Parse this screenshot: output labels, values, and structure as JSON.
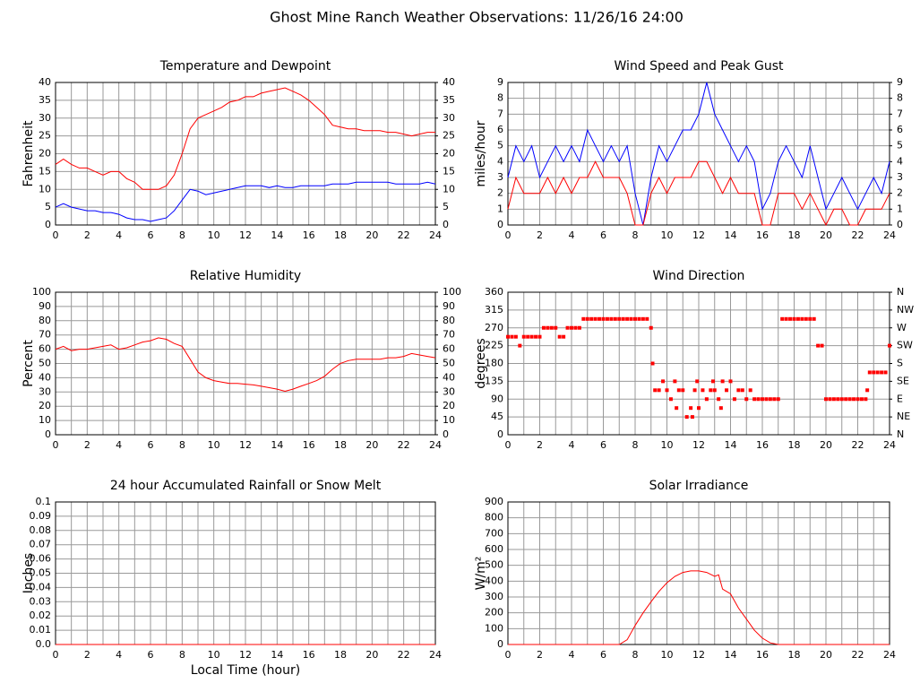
{
  "title": "Ghost Mine Ranch Weather Observations: 11/26/16 24:00",
  "chart_data": [
    {
      "type": "line",
      "title": "Temperature and Dewpoint",
      "ylabel": "Fahrenheit",
      "x": [
        0,
        0.5,
        1,
        1.5,
        2,
        2.5,
        3,
        3.5,
        4,
        4.5,
        5,
        5.5,
        6,
        6.5,
        7,
        7.5,
        8,
        8.5,
        9,
        9.5,
        10,
        10.5,
        11,
        11.5,
        12,
        12.5,
        13,
        13.5,
        14,
        14.5,
        15,
        15.5,
        16,
        16.5,
        17,
        17.5,
        18,
        18.5,
        19,
        19.5,
        20,
        20.5,
        21,
        21.5,
        22,
        22.5,
        23,
        23.5,
        24
      ],
      "series": [
        {
          "color": "#ff0000",
          "values": [
            17,
            18.5,
            17,
            16,
            16,
            15,
            14,
            15,
            15,
            13,
            12,
            10,
            10,
            10,
            11,
            14,
            20,
            27,
            30,
            31,
            32,
            33,
            34.5,
            35,
            36,
            36,
            37,
            37.5,
            38,
            38.5,
            37.5,
            36.5,
            35,
            33,
            31,
            28,
            27.5,
            27,
            27,
            26.5,
            26.5,
            26.5,
            26,
            26,
            25.5,
            25,
            25.5,
            26,
            26
          ]
        },
        {
          "color": "#0000ff",
          "values": [
            5,
            6,
            5,
            4.5,
            4,
            4,
            3.5,
            3.5,
            3,
            2,
            1.5,
            1.5,
            1,
            1.5,
            2,
            4,
            7,
            10,
            9.5,
            8.5,
            9,
            9.5,
            10,
            10.5,
            11,
            11,
            11,
            10.5,
            11,
            10.5,
            10.5,
            11,
            11,
            11,
            11,
            11.5,
            11.5,
            11.5,
            12,
            12,
            12,
            12,
            12,
            11.5,
            11.5,
            11.5,
            11.5,
            12,
            11.5
          ]
        }
      ],
      "xlim": [
        0,
        24
      ],
      "xticks": [
        0,
        2,
        4,
        6,
        8,
        10,
        12,
        14,
        16,
        18,
        20,
        22,
        24
      ],
      "xminorticks": [
        1,
        3,
        5,
        7,
        9,
        11,
        13,
        15,
        17,
        19,
        21,
        23
      ],
      "ylim": [
        0,
        40
      ],
      "yticks": [
        0,
        5,
        10,
        15,
        20,
        25,
        30,
        35,
        40
      ],
      "y2lim": [
        0,
        40
      ],
      "y2ticks": [
        0,
        5,
        10,
        15,
        20,
        25,
        30,
        35,
        40
      ],
      "grid": true
    },
    {
      "type": "line",
      "title": "Wind Speed and Peak Gust",
      "ylabel": "miles/hour",
      "x": [
        0,
        0.5,
        1,
        1.5,
        2,
        2.5,
        3,
        3.5,
        4,
        4.5,
        5,
        5.5,
        6,
        6.5,
        7,
        7.5,
        8,
        8.5,
        9,
        9.5,
        10,
        10.5,
        11,
        11.5,
        12,
        12.5,
        13,
        13.5,
        14,
        14.5,
        15,
        15.5,
        16,
        16.5,
        17,
        17.5,
        18,
        18.5,
        19,
        19.5,
        20,
        20.5,
        21,
        21.5,
        22,
        22.5,
        23,
        23.5,
        24
      ],
      "series": [
        {
          "color": "#0000ff",
          "values": [
            3,
            5,
            4,
            5,
            3,
            4,
            5,
            4,
            5,
            4,
            6,
            5,
            4,
            5,
            4,
            5,
            2,
            0,
            3,
            5,
            4,
            5,
            6,
            6,
            7,
            9,
            7,
            6,
            5,
            4,
            5,
            4,
            1,
            2,
            4,
            5,
            4,
            3,
            5,
            3,
            1,
            2,
            3,
            2,
            1,
            2,
            3,
            2,
            4
          ]
        },
        {
          "color": "#ff0000",
          "values": [
            1,
            3,
            2,
            2,
            2,
            3,
            2,
            3,
            2,
            3,
            3,
            4,
            3,
            3,
            3,
            2,
            0,
            0,
            2,
            3,
            2,
            3,
            3,
            3,
            4,
            4,
            3,
            2,
            3,
            2,
            2,
            2,
            0,
            0,
            2,
            2,
            2,
            1,
            2,
            1,
            0,
            1,
            1,
            0,
            0,
            1,
            1,
            1,
            2
          ]
        }
      ],
      "xlim": [
        0,
        24
      ],
      "xticks": [
        0,
        2,
        4,
        6,
        8,
        10,
        12,
        14,
        16,
        18,
        20,
        22,
        24
      ],
      "xminorticks": [
        1,
        3,
        5,
        7,
        9,
        11,
        13,
        15,
        17,
        19,
        21,
        23
      ],
      "ylim": [
        0,
        9
      ],
      "yticks": [
        0,
        1,
        2,
        3,
        4,
        5,
        6,
        7,
        8,
        9
      ],
      "y2lim": [
        0,
        9
      ],
      "y2ticks": [
        0,
        1,
        2,
        3,
        4,
        5,
        6,
        7,
        8,
        9
      ],
      "grid": true
    },
    {
      "type": "line",
      "title": "Relative Humidity",
      "ylabel": "Percent",
      "x": [
        0,
        0.5,
        1,
        1.5,
        2,
        2.5,
        3,
        3.5,
        4,
        4.5,
        5,
        5.5,
        6,
        6.5,
        7,
        7.5,
        8,
        8.5,
        9,
        9.5,
        10,
        10.5,
        11,
        11.5,
        12,
        12.5,
        13,
        13.5,
        14,
        14.5,
        15,
        15.5,
        16,
        16.5,
        17,
        17.5,
        18,
        18.5,
        19,
        19.5,
        20,
        20.5,
        21,
        21.5,
        22,
        22.5,
        23,
        23.5,
        24
      ],
      "series": [
        {
          "color": "#ff0000",
          "values": [
            60,
            62,
            59,
            60,
            60,
            61,
            62,
            63,
            60,
            61,
            63,
            65,
            66,
            68,
            67,
            64,
            62,
            53,
            44,
            40,
            38,
            37,
            36,
            36,
            35.5,
            35,
            34,
            33,
            32,
            30.5,
            32,
            34,
            36,
            38,
            41,
            46,
            50,
            52,
            53,
            53,
            53,
            53,
            54,
            54,
            55,
            57,
            56,
            55,
            54
          ]
        }
      ],
      "xlim": [
        0,
        24
      ],
      "xticks": [
        0,
        2,
        4,
        6,
        8,
        10,
        12,
        14,
        16,
        18,
        20,
        22,
        24
      ],
      "xminorticks": [
        1,
        3,
        5,
        7,
        9,
        11,
        13,
        15,
        17,
        19,
        21,
        23
      ],
      "ylim": [
        0,
        100
      ],
      "yticks": [
        0,
        10,
        20,
        30,
        40,
        50,
        60,
        70,
        80,
        90,
        100
      ],
      "y2lim": [
        0,
        100
      ],
      "y2ticks": [
        0,
        10,
        20,
        30,
        40,
        50,
        60,
        70,
        80,
        90,
        100
      ],
      "grid": true
    },
    {
      "type": "scatter",
      "title": "Wind Direction",
      "ylabel": "degrees",
      "x": [
        0,
        0.25,
        0.5,
        0.75,
        1,
        1.25,
        1.5,
        1.75,
        2,
        2.25,
        2.5,
        2.75,
        3,
        3.25,
        3.5,
        3.75,
        4,
        4.25,
        4.5,
        4.75,
        5,
        5.25,
        5.5,
        5.75,
        6,
        6.25,
        6.5,
        6.75,
        7,
        7.25,
        7.5,
        7.75,
        8,
        8.25,
        8.5,
        8.75,
        9,
        9.1,
        9.25,
        9.5,
        9.75,
        10,
        10.25,
        10.5,
        10.6,
        10.75,
        11,
        11.25,
        11.5,
        11.6,
        11.75,
        11.9,
        12,
        12.25,
        12.5,
        12.75,
        12.9,
        13,
        13.25,
        13.4,
        13.5,
        13.75,
        14,
        14.25,
        14.5,
        14.75,
        15,
        15.25,
        15.5,
        15.75,
        16,
        16.25,
        16.5,
        16.75,
        17,
        17.25,
        17.5,
        17.75,
        18,
        18.25,
        18.5,
        18.75,
        19,
        19.25,
        19.5,
        19.75,
        20,
        20.25,
        20.5,
        20.75,
        21,
        21.25,
        21.5,
        21.75,
        22,
        22.25,
        22.5,
        22.6,
        22.75,
        23,
        23.25,
        23.5,
        23.75,
        24
      ],
      "series": [
        {
          "color": "#ff0000",
          "values": [
            247.5,
            247.5,
            247.5,
            225,
            247.5,
            247.5,
            247.5,
            247.5,
            247.5,
            270,
            270,
            270,
            270,
            247.5,
            247.5,
            270,
            270,
            270,
            270,
            292.5,
            292.5,
            292.5,
            292.5,
            292.5,
            292.5,
            292.5,
            292.5,
            292.5,
            292.5,
            292.5,
            292.5,
            292.5,
            292.5,
            292.5,
            292.5,
            292.5,
            270,
            180,
            112.5,
            112.5,
            135,
            112.5,
            90,
            135,
            67.5,
            112.5,
            112.5,
            45,
            67.5,
            45,
            112.5,
            135,
            67.5,
            112.5,
            90,
            112.5,
            135,
            112.5,
            90,
            67.5,
            135,
            112.5,
            135,
            90,
            112.5,
            112.5,
            90,
            112.5,
            90,
            90,
            90,
            90,
            90,
            90,
            90,
            292.5,
            292.5,
            292.5,
            292.5,
            292.5,
            292.5,
            292.5,
            292.5,
            292.5,
            225,
            225,
            90,
            90,
            90,
            90,
            90,
            90,
            90,
            90,
            90,
            90,
            90,
            112.5,
            157.5,
            157.5,
            157.5,
            157.5,
            157.5,
            225
          ]
        }
      ],
      "xlim": [
        0,
        24
      ],
      "xticks": [
        0,
        2,
        4,
        6,
        8,
        10,
        12,
        14,
        16,
        18,
        20,
        22,
        24
      ],
      "xminorticks": [
        1,
        3,
        5,
        7,
        9,
        11,
        13,
        15,
        17,
        19,
        21,
        23
      ],
      "ylim": [
        0,
        360
      ],
      "yticks": [
        0,
        45,
        90,
        135,
        180,
        225,
        270,
        315,
        360
      ],
      "y2lim": [
        0,
        360
      ],
      "y2ticks": [
        {
          "value": 0,
          "label": "N"
        },
        {
          "value": 45,
          "label": "NE"
        },
        {
          "value": 90,
          "label": "E"
        },
        {
          "value": 135,
          "label": "SE"
        },
        {
          "value": 180,
          "label": "S"
        },
        {
          "value": 225,
          "label": "SW"
        },
        {
          "value": 270,
          "label": "W"
        },
        {
          "value": 315,
          "label": "NW"
        },
        {
          "value": 360,
          "label": "N"
        }
      ],
      "grid": true
    },
    {
      "type": "line",
      "title": "24 hour Accumulated Rainfall or Snow Melt",
      "ylabel": "Inches",
      "xlabel": "Local Time (hour)",
      "x": [
        0,
        24
      ],
      "series": [
        {
          "color": "#ff0000",
          "values": [
            0,
            0
          ]
        }
      ],
      "xlim": [
        0,
        24
      ],
      "xticks": [
        0,
        2,
        4,
        6,
        8,
        10,
        12,
        14,
        16,
        18,
        20,
        22,
        24
      ],
      "xminorticks": [
        1,
        3,
        5,
        7,
        9,
        11,
        13,
        15,
        17,
        19,
        21,
        23
      ],
      "ylim": [
        0,
        0.1
      ],
      "yticks": [
        {
          "value": 0,
          "label": "0.0"
        },
        0.01,
        0.02,
        0.03,
        0.04,
        0.05,
        0.06,
        0.07,
        0.08,
        0.09,
        0.1
      ],
      "grid": true
    },
    {
      "type": "line",
      "title": "Solar Irradiance",
      "ylabel": "W/m²",
      "x": [
        0,
        7,
        7.5,
        8,
        8.5,
        9,
        9.5,
        10,
        10.5,
        11,
        11.5,
        12,
        12.5,
        13,
        13.25,
        13.5,
        14,
        14.5,
        15,
        15.5,
        16,
        16.5,
        17,
        24
      ],
      "series": [
        {
          "color": "#ff0000",
          "values": [
            0,
            0,
            30,
            120,
            200,
            270,
            335,
            390,
            430,
            455,
            465,
            465,
            455,
            430,
            440,
            350,
            320,
            230,
            160,
            90,
            40,
            10,
            0,
            0
          ]
        }
      ],
      "xlim": [
        0,
        24
      ],
      "xticks": [
        0,
        2,
        4,
        6,
        8,
        10,
        12,
        14,
        16,
        18,
        20,
        22,
        24
      ],
      "xminorticks": [
        1,
        3,
        5,
        7,
        9,
        11,
        13,
        15,
        17,
        19,
        21,
        23
      ],
      "ylim": [
        0,
        900
      ],
      "yticks": [
        0,
        100,
        200,
        300,
        400,
        500,
        600,
        700,
        800,
        900
      ],
      "grid": true
    }
  ]
}
